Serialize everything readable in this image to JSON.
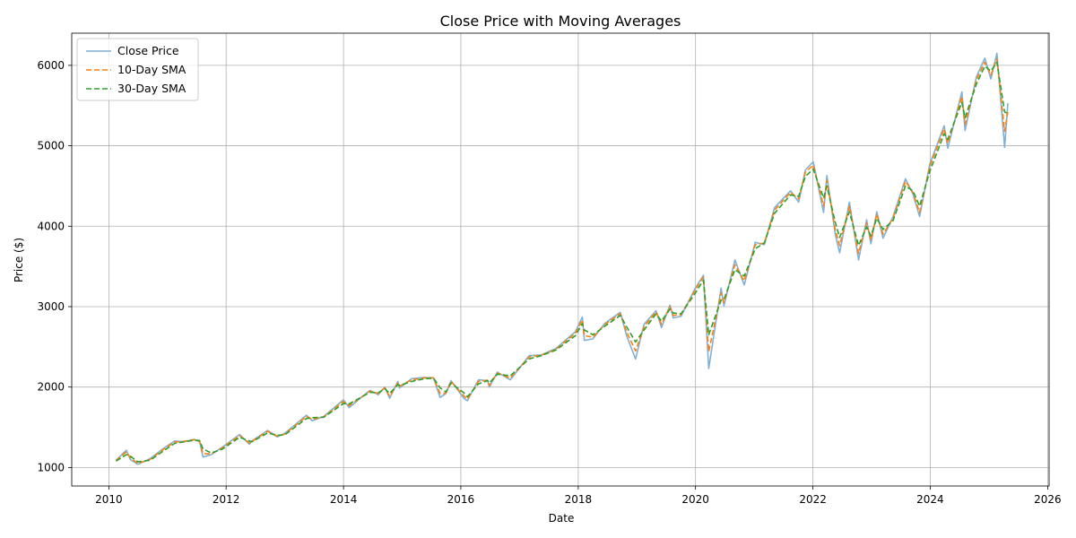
{
  "chart_data": {
    "type": "line",
    "title": "Close Price with Moving Averages",
    "xlabel": "Date",
    "ylabel": "Price ($)",
    "xlim": [
      "2009-05-15",
      "2026-01-10"
    ],
    "ylim": [
      770,
      6400
    ],
    "x_ticks": [
      "2010",
      "2012",
      "2014",
      "2016",
      "2018",
      "2020",
      "2022",
      "2024",
      "2026"
    ],
    "y_ticks": [
      1000,
      2000,
      3000,
      4000,
      5000,
      6000
    ],
    "grid": true,
    "legend_position": "top-left",
    "series": [
      {
        "name": "Close Price",
        "color": "#7fb1d6",
        "style": "solid"
      },
      {
        "name": "10-Day SMA",
        "color": "#ff7f0e",
        "style": "dashed"
      },
      {
        "name": "30-Day SMA",
        "color": "#2ca02c",
        "style": "dashed"
      }
    ],
    "x": [
      "2010-02-15",
      "2010-04-20",
      "2010-05-15",
      "2010-07-01",
      "2010-09-15",
      "2010-12-10",
      "2011-02-15",
      "2011-04-15",
      "2011-06-15",
      "2011-07-20",
      "2011-08-10",
      "2011-10-01",
      "2011-12-10",
      "2012-03-25",
      "2012-05-25",
      "2012-06-10",
      "2012-09-15",
      "2012-11-15",
      "2012-12-31",
      "2013-05-15",
      "2013-06-20",
      "2013-08-31",
      "2013-12-31",
      "2014-02-05",
      "2014-06-15",
      "2014-08-05",
      "2014-09-15",
      "2014-10-15",
      "2014-12-05",
      "2014-12-15",
      "2015-03-01",
      "2015-05-20",
      "2015-07-15",
      "2015-08-25",
      "2015-09-30",
      "2015-11-01",
      "2016-01-20",
      "2016-02-11",
      "2016-04-20",
      "2016-06-15",
      "2016-06-27",
      "2016-08-15",
      "2016-11-04",
      "2017-03-01",
      "2017-05-15",
      "2017-08-15",
      "2017-12-15",
      "2018-01-26",
      "2018-02-08",
      "2018-04-02",
      "2018-06-15",
      "2018-09-20",
      "2018-10-29",
      "2018-12-24",
      "2019-02-15",
      "2019-04-30",
      "2019-06-03",
      "2019-07-26",
      "2019-08-15",
      "2019-10-03",
      "2019-12-31",
      "2020-02-19",
      "2020-03-23",
      "2020-06-08",
      "2020-06-26",
      "2020-09-02",
      "2020-10-30",
      "2021-01-07",
      "2021-03-04",
      "2021-05-07",
      "2021-08-15",
      "2021-10-04",
      "2021-11-15",
      "2022-01-03",
      "2022-03-08",
      "2022-03-29",
      "2022-05-20",
      "2022-06-16",
      "2022-08-16",
      "2022-10-12",
      "2022-12-01",
      "2022-12-28",
      "2023-02-02",
      "2023-03-13",
      "2023-05-15",
      "2023-07-31",
      "2023-09-15",
      "2023-10-27",
      "2023-12-29",
      "2024-03-28",
      "2024-04-19",
      "2024-07-16",
      "2024-08-05",
      "2024-10-15",
      "2024-12-06",
      "2025-01-13",
      "2025-02-19",
      "2025-04-08",
      "2025-04-28"
    ],
    "close": [
      1090,
      1215,
      1100,
      1040,
      1110,
      1240,
      1330,
      1320,
      1350,
      1320,
      1130,
      1160,
      1255,
      1410,
      1290,
      1330,
      1460,
      1380,
      1425,
      1650,
      1580,
      1635,
      1840,
      1745,
      1960,
      1905,
      2000,
      1860,
      2070,
      1990,
      2105,
      2120,
      2115,
      1870,
      1920,
      2080,
      1860,
      1830,
      2090,
      2080,
      2000,
      2185,
      2090,
      2390,
      2400,
      2480,
      2690,
      2870,
      2580,
      2600,
      2790,
      2930,
      2640,
      2350,
      2780,
      2950,
      2740,
      3020,
      2860,
      2880,
      3230,
      3390,
      2230,
      3230,
      3010,
      3580,
      3270,
      3800,
      3770,
      4230,
      4440,
      4300,
      4700,
      4800,
      4170,
      4630,
      3900,
      3670,
      4300,
      3580,
      4080,
      3780,
      4180,
      3850,
      4120,
      4590,
      4400,
      4120,
      4770,
      5250,
      4970,
      5670,
      5190,
      5860,
      6090,
      5830,
      6150,
      4980,
      5530
    ],
    "sma10": [
      1085,
      1195,
      1120,
      1050,
      1100,
      1230,
      1315,
      1325,
      1345,
      1330,
      1170,
      1170,
      1245,
      1395,
      1305,
      1325,
      1450,
      1390,
      1415,
      1635,
      1600,
      1630,
      1820,
      1770,
      1950,
      1920,
      1990,
      1885,
      2050,
      2010,
      2090,
      2115,
      2115,
      1920,
      1925,
      2070,
      1890,
      1850,
      2070,
      2085,
      2020,
      2175,
      2110,
      2375,
      2395,
      2470,
      2670,
      2835,
      2640,
      2620,
      2775,
      2915,
      2690,
      2450,
      2750,
      2935,
      2780,
      3000,
      2890,
      2900,
      3210,
      3370,
      2440,
      3170,
      3050,
      3520,
      3320,
      3770,
      3790,
      4200,
      4420,
      4340,
      4670,
      4760,
      4250,
      4570,
      3960,
      3760,
      4250,
      3660,
      4040,
      3830,
      4150,
      3900,
      4100,
      4560,
      4420,
      4170,
      4740,
      5210,
      5030,
      5610,
      5270,
      5820,
      6040,
      5880,
      6080,
      5180,
      5420
    ],
    "sma30": [
      1080,
      1160,
      1140,
      1070,
      1090,
      1210,
      1300,
      1320,
      1340,
      1335,
      1230,
      1180,
      1230,
      1375,
      1330,
      1320,
      1430,
      1400,
      1405,
      1610,
      1620,
      1625,
      1795,
      1790,
      1935,
      1930,
      1980,
      1920,
      2030,
      2020,
      2070,
      2105,
      2110,
      1990,
      1940,
      2050,
      1930,
      1880,
      2040,
      2080,
      2050,
      2160,
      2140,
      2350,
      2390,
      2460,
      2640,
      2790,
      2710,
      2650,
      2755,
      2890,
      2750,
      2560,
      2710,
      2910,
      2820,
      2970,
      2920,
      2910,
      3170,
      3330,
      2650,
      3080,
      3090,
      3460,
      3380,
      3720,
      3790,
      4160,
      4390,
      4370,
      4620,
      4710,
      4350,
      4500,
      4050,
      3860,
      4180,
      3760,
      3990,
      3880,
      4100,
      3960,
      4070,
      4500,
      4440,
      4250,
      4680,
      5150,
      5080,
      5540,
      5350,
      5770,
      5990,
      5930,
      6040,
      5420,
      5400
    ]
  }
}
